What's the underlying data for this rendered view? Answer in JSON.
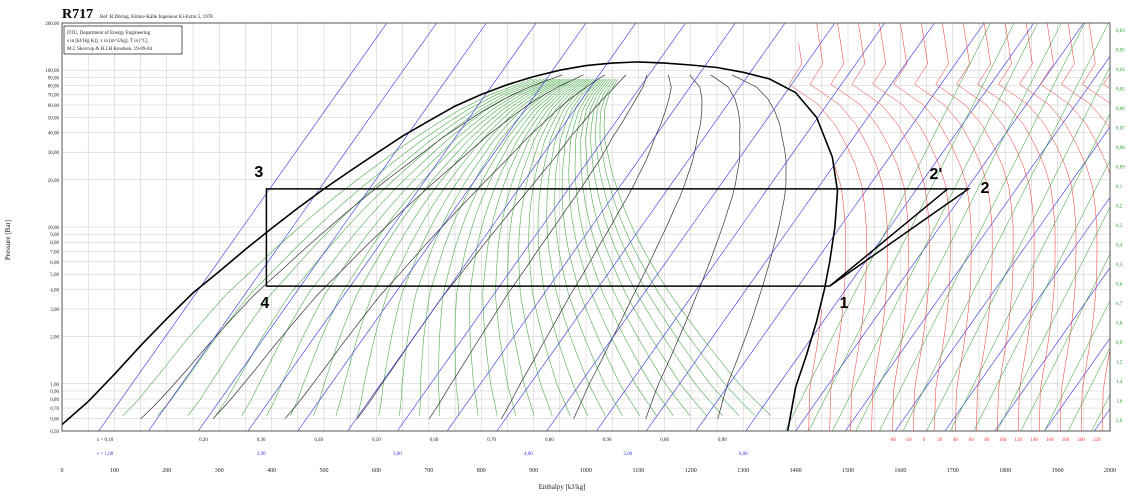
{
  "chart_data": {
    "type": "line",
    "title": "R717",
    "subtitle": "Ref :R.Döring, Klima+Kälte Ingenieur Ki-Extra 5, 1978",
    "info_lines": [
      "DTU, Department of Energy Engineering",
      "s in [kJ/(kg K)]. v in [m^3/kg]. T in [ºC]",
      "M.J. Skovrup & H.J.H Knudsen. 19-09-04"
    ],
    "xlabel": "Enthalpy [kJ/kg]",
    "ylabel": "Pressure [Bar]",
    "xlim": [
      0,
      2000
    ],
    "ylim": [
      0.5,
      200
    ],
    "y_scale": "log",
    "x_ticks": [
      0,
      100,
      200,
      300,
      400,
      500,
      600,
      700,
      800,
      900,
      1000,
      1100,
      1200,
      1300,
      1400,
      1500,
      1600,
      1700,
      1800,
      1900,
      2000
    ],
    "y_ticks": [
      {
        "value": 200,
        "label": "200,00"
      },
      {
        "value": 100,
        "label": "100,00"
      },
      {
        "value": 90,
        "label": "90,00"
      },
      {
        "value": 80,
        "label": "80,00"
      },
      {
        "value": 70,
        "label": "70,00"
      },
      {
        "value": 60,
        "label": "60,00"
      },
      {
        "value": 50,
        "label": "50,00"
      },
      {
        "value": 40,
        "label": "40,00"
      },
      {
        "value": 30,
        "label": "30,00"
      },
      {
        "value": 20,
        "label": "20,00"
      },
      {
        "value": 10,
        "label": "10,00"
      },
      {
        "value": 9,
        "label": "9,00"
      },
      {
        "value": 8,
        "label": "8,00"
      },
      {
        "value": 7,
        "label": "7,00"
      },
      {
        "value": 6,
        "label": "6,00"
      },
      {
        "value": 5,
        "label": "5,00"
      },
      {
        "value": 4,
        "label": "4,00"
      },
      {
        "value": 3,
        "label": "3,00"
      },
      {
        "value": 2,
        "label": "2,00"
      },
      {
        "value": 1,
        "label": "1,00"
      },
      {
        "value": 0.9,
        "label": "0,90"
      },
      {
        "value": 0.8,
        "label": "0,80"
      },
      {
        "value": 0.7,
        "label": "0,70"
      },
      {
        "value": 0.6,
        "label": "0,60"
      },
      {
        "value": 0.5,
        "label": "0,50"
      }
    ],
    "quality_labels": [
      {
        "h": 82,
        "text": "x = 0,10"
      },
      {
        "h": 270,
        "text": "0,20"
      },
      {
        "h": 380,
        "text": "0,30"
      },
      {
        "h": 490,
        "text": "0,40"
      },
      {
        "h": 600,
        "text": "0,50"
      },
      {
        "h": 710,
        "text": "0,60"
      },
      {
        "h": 820,
        "text": "0,70"
      },
      {
        "h": 930,
        "text": "0,80"
      },
      {
        "h": 1040,
        "text": "0,90"
      },
      {
        "h": 1150,
        "text": "0,80"
      },
      {
        "h": 1260,
        "text": "0,90"
      }
    ],
    "volume_labels": [
      {
        "h": 82,
        "text": "v = 1,00"
      },
      {
        "h": 380,
        "text": "2,00"
      },
      {
        "h": 640,
        "text": "3,00"
      },
      {
        "h": 890,
        "text": "4,00"
      },
      {
        "h": 1080,
        "text": "5,00"
      },
      {
        "h": 1300,
        "text": "6,00"
      }
    ],
    "temperature_scale": [
      "-60",
      "-20",
      "0",
      "20",
      "40",
      "60",
      "80",
      "100",
      "120",
      "140",
      "160",
      "180",
      "200",
      "220"
    ],
    "right_scale": [
      "0,03",
      "0,05",
      "0,04",
      "0,05",
      "0,06",
      "0,07",
      "0,08",
      "0,09",
      "0,1",
      "0,2",
      "0,3",
      "0,4",
      "0,5",
      "0,6",
      "0,7",
      "0,8",
      "0,9",
      "1,2",
      "1,4",
      "1,6",
      "2,0"
    ],
    "saturation_dome": {
      "liquid": [
        [
          0,
          0.55
        ],
        [
          50,
          0.77
        ],
        [
          100,
          1.15
        ],
        [
          150,
          1.75
        ],
        [
          200,
          2.6
        ],
        [
          250,
          3.8
        ],
        [
          300,
          5.2
        ],
        [
          350,
          7.2
        ],
        [
          400,
          9.8
        ],
        [
          450,
          13.2
        ],
        [
          500,
          17.5
        ],
        [
          550,
          22.8
        ],
        [
          600,
          29.5
        ],
        [
          650,
          38
        ],
        [
          700,
          47.5
        ],
        [
          750,
          59
        ],
        [
          800,
          70
        ],
        [
          850,
          81
        ],
        [
          900,
          91
        ],
        [
          950,
          100
        ],
        [
          1000,
          107
        ],
        [
          1050,
          111
        ],
        [
          1100,
          113
        ]
      ],
      "vapor": [
        [
          1100,
          113
        ],
        [
          1150,
          111
        ],
        [
          1200,
          108
        ],
        [
          1250,
          104
        ],
        [
          1300,
          97
        ],
        [
          1350,
          88
        ],
        [
          1400,
          72
        ],
        [
          1440,
          50
        ],
        [
          1470,
          28
        ],
        [
          1480,
          17
        ],
        [
          1475,
          10
        ],
        [
          1465,
          6
        ],
        [
          1455,
          4
        ],
        [
          1440,
          2.5
        ],
        [
          1420,
          1.5
        ],
        [
          1400,
          0.95
        ],
        [
          1385,
          0.5
        ]
      ]
    },
    "series": [
      {
        "name": "",
        "points": [
          {
            "label": "1",
            "h": 1465,
            "p": 4.2
          },
          {
            "label": "2",
            "h": 1730,
            "p": 17.5
          },
          {
            "label": "3",
            "h": 390,
            "p": 17.5
          },
          {
            "label": "4",
            "h": 390,
            "p": 4.2
          }
        ]
      },
      {
        "name": "",
        "points": [
          {
            "label": "1",
            "h": 1465,
            "p": 4.2
          },
          {
            "label": "2'",
            "h": 1690,
            "p": 17.5
          }
        ]
      }
    ],
    "grid": true,
    "colors": {
      "grid": "#c8c8c8",
      "isotherm": "#ee3333",
      "isochore": "#3333dd",
      "isentrope": "#229922",
      "dome": "#000000",
      "cycle": "#000000"
    }
  }
}
